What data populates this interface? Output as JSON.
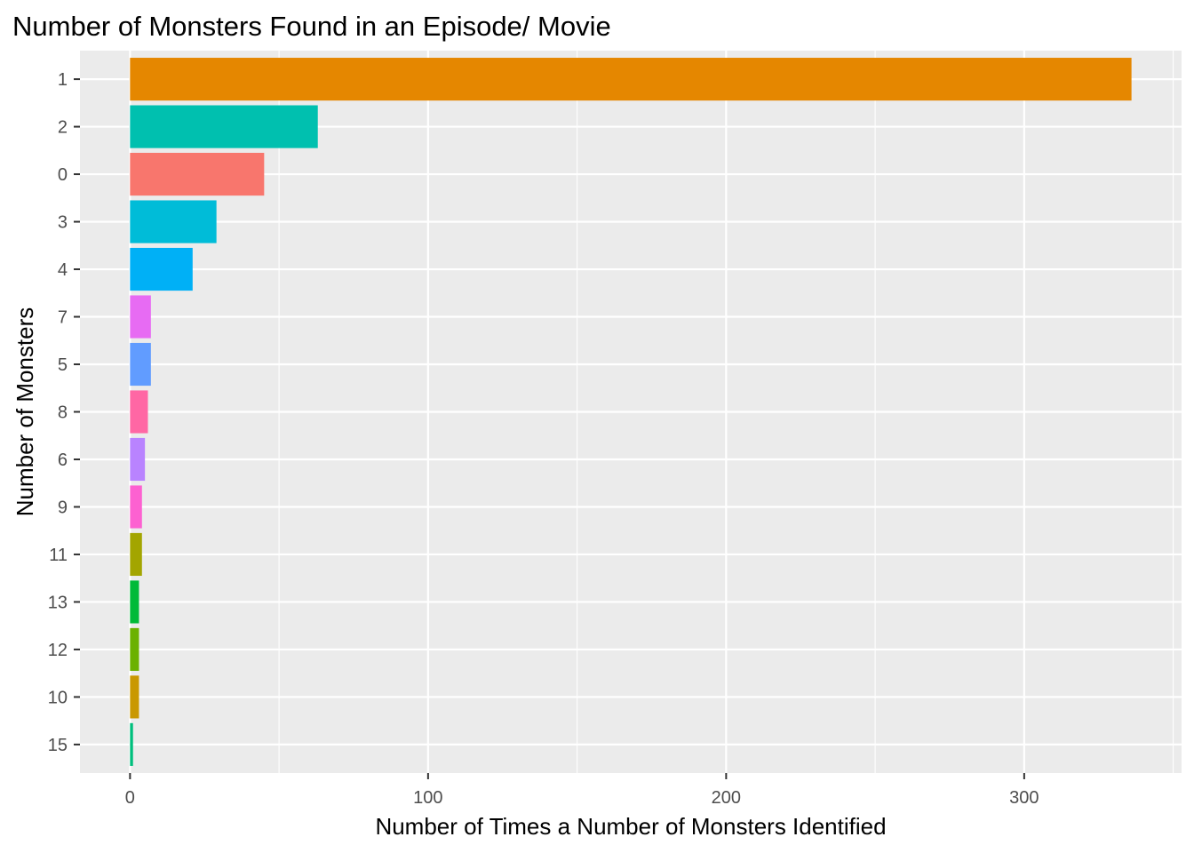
{
  "chart_data": {
    "type": "bar",
    "orientation": "horizontal",
    "title": "Number of Monsters Found in an Episode/ Movie",
    "xlabel": "Number of Times a Number of Monsters Identified",
    "ylabel": "Number of Monsters",
    "categories": [
      "1",
      "2",
      "0",
      "3",
      "4",
      "7",
      "5",
      "8",
      "6",
      "9",
      "11",
      "13",
      "12",
      "10",
      "15"
    ],
    "values": [
      336,
      63,
      45,
      29,
      21,
      7,
      7,
      6,
      5,
      4,
      4,
      3,
      3,
      3,
      1
    ],
    "colors": [
      "#E58700",
      "#00C0AF",
      "#F8766D",
      "#00BCD8",
      "#00B0F6",
      "#E76BF3",
      "#619CFF",
      "#FF67A4",
      "#B983FF",
      "#FD61D1",
      "#A3A500",
      "#00BA38",
      "#6BB100",
      "#C99800",
      "#00BF7D"
    ],
    "xticks": [
      0,
      100,
      200,
      300
    ],
    "xlim": [
      -16.8,
      352.8
    ],
    "grid": true,
    "legend": "none"
  }
}
